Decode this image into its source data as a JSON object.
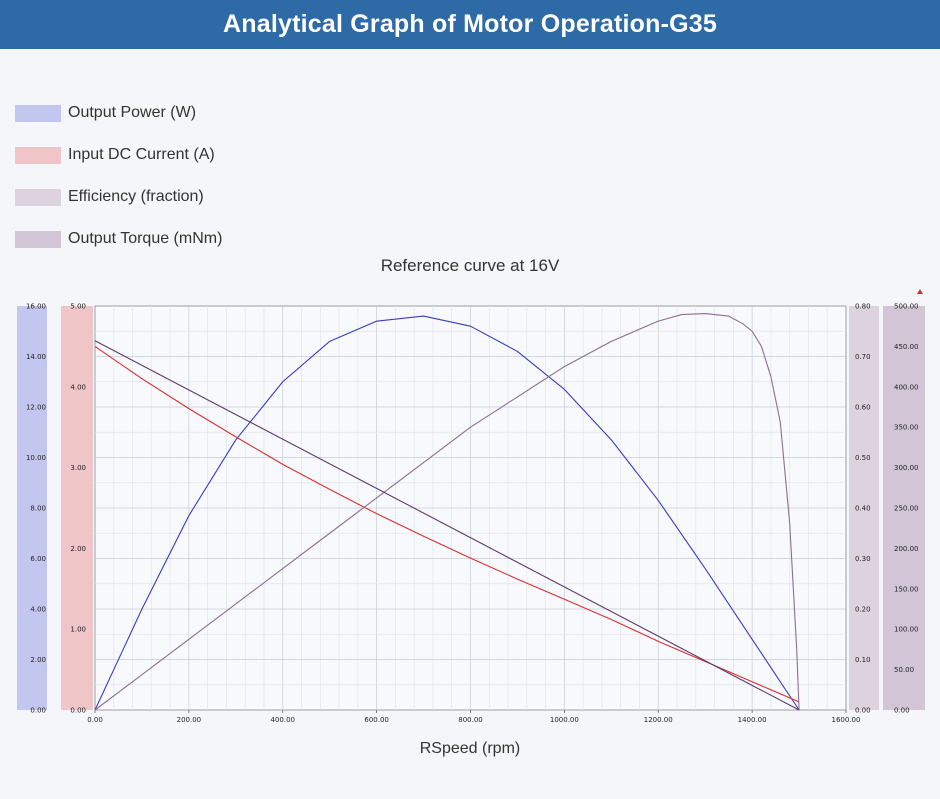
{
  "header": {
    "title": "Analytical Graph of Motor Operation-G35"
  },
  "colors": {
    "header_bg": "#2e6aa5",
    "power": "#3b3bbd",
    "current": "#d93030",
    "efficiency": "#8a6f93",
    "torque": "#5a3a6e",
    "power_band": "#c3c6ef",
    "current_band": "#f0c5c8",
    "efficiency_band": "#ddd3df",
    "torque_band": "#d2c6d6"
  },
  "chart_data": {
    "type": "line",
    "title": "Reference curve at 16V",
    "xlabel": "RSpeed (rpm)",
    "xlim": [
      0,
      1600
    ],
    "x_ticks": [
      "0.00",
      "200.00",
      "400.00",
      "600.00",
      "800.00",
      "1000.00",
      "1200.00",
      "1400.00",
      "1600.00"
    ],
    "legend_placement": "top-left",
    "grid": true,
    "axes": [
      {
        "id": "power",
        "side": "left-outer",
        "range": [
          0,
          16
        ],
        "ticks": [
          "0.00",
          "2.00",
          "4.00",
          "6.00",
          "8.00",
          "10.00",
          "12.00",
          "14.00",
          "16.00"
        ]
      },
      {
        "id": "current",
        "side": "left-inner",
        "range": [
          0,
          5
        ],
        "ticks": [
          "0.00",
          "1.00",
          "2.00",
          "3.00",
          "4.00",
          "5.00"
        ]
      },
      {
        "id": "efficiency",
        "side": "right-inner",
        "range": [
          0,
          0.8
        ],
        "ticks": [
          "0.00",
          "0.10",
          "0.20",
          "0.30",
          "0.40",
          "0.50",
          "0.60",
          "0.70",
          "0.80"
        ]
      },
      {
        "id": "torque",
        "side": "right-outer",
        "range": [
          0,
          500
        ],
        "ticks": [
          "0.00",
          "50.00",
          "100.00",
          "150.00",
          "200.00",
          "250.00",
          "300.00",
          "350.00",
          "400.00",
          "450.00",
          "500.00"
        ]
      }
    ],
    "series": [
      {
        "name": "Output Power (W)",
        "axis": "power",
        "color": "#3b3bbd",
        "x": [
          0,
          100,
          200,
          300,
          400,
          500,
          600,
          700,
          800,
          900,
          1000,
          1100,
          1200,
          1300,
          1400,
          1450,
          1500
        ],
        "y": [
          0,
          4.0,
          7.7,
          10.7,
          13.0,
          14.6,
          15.4,
          15.6,
          15.2,
          14.2,
          12.7,
          10.7,
          8.3,
          5.6,
          2.8,
          1.4,
          0
        ]
      },
      {
        "name": "Input DC Current (A)",
        "axis": "current",
        "color": "#d93030",
        "x": [
          0,
          100,
          200,
          300,
          400,
          500,
          600,
          700,
          800,
          900,
          1000,
          1100,
          1200,
          1300,
          1400,
          1500
        ],
        "y": [
          4.5,
          4.1,
          3.73,
          3.38,
          3.04,
          2.73,
          2.43,
          2.15,
          1.88,
          1.62,
          1.37,
          1.12,
          0.85,
          0.6,
          0.35,
          0.1
        ]
      },
      {
        "name": "Efficiency (fraction)",
        "axis": "efficiency",
        "color": "#8a6f93",
        "x": [
          0,
          100,
          200,
          300,
          400,
          500,
          600,
          700,
          800,
          900,
          1000,
          1100,
          1200,
          1250,
          1300,
          1350,
          1380,
          1400,
          1420,
          1440,
          1460,
          1480,
          1495,
          1500
        ],
        "y": [
          0,
          0.07,
          0.14,
          0.21,
          0.28,
          0.35,
          0.42,
          0.49,
          0.56,
          0.62,
          0.68,
          0.73,
          0.77,
          0.783,
          0.785,
          0.78,
          0.765,
          0.75,
          0.72,
          0.66,
          0.57,
          0.37,
          0.12,
          0
        ]
      },
      {
        "name": "Output Torque (mNm)",
        "axis": "torque",
        "color": "#5a3a6e",
        "x": [
          0,
          1500
        ],
        "y": [
          457,
          0
        ]
      }
    ]
  }
}
